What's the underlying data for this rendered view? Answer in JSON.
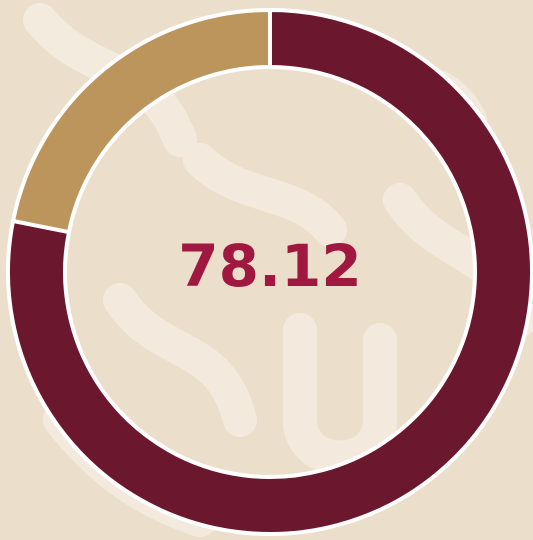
{
  "chart_data": {
    "type": "donut",
    "values": [
      78.12,
      21.88
    ],
    "colors": [
      "#6b172d",
      "#bc955c"
    ]
  }
}
